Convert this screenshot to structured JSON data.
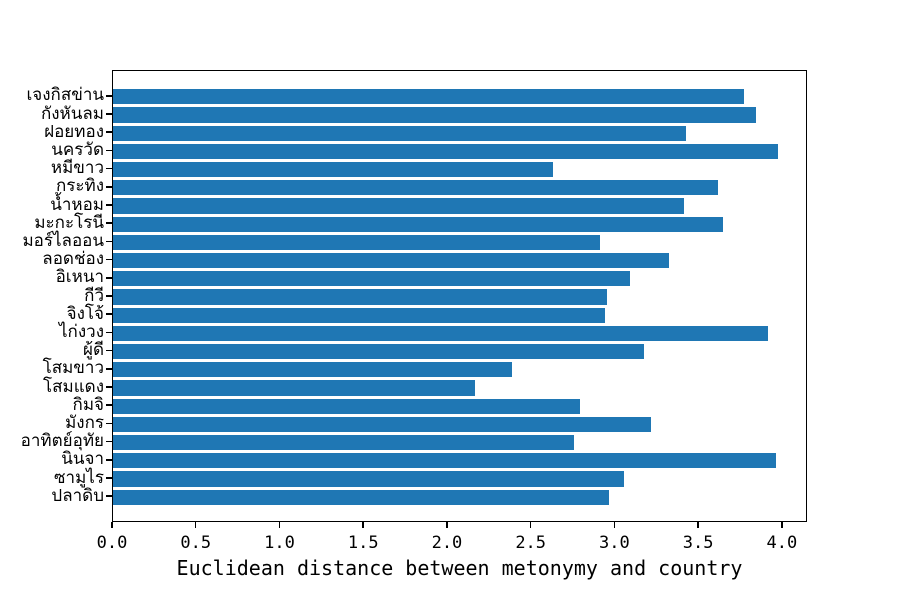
{
  "chart_data": {
    "type": "bar",
    "orientation": "horizontal",
    "title": "",
    "xlabel": "Euclidean distance between metonymy and country",
    "ylabel": "",
    "categories": [
      "เจงกิสข่าน",
      "กังหันลม",
      "ฝอยทอง",
      "นครวัด",
      "หมีขาว",
      "กระทิง",
      "น้ำหอม",
      "มะกะโรนี",
      "มอร์ไลออน",
      "ลอดช่อง",
      "อิเหนา",
      "กีวี",
      "จิงโจ้",
      "ไก่งวง",
      "ผู้ดี",
      "โสมขาว",
      "โสมแดง",
      "กิมจิ",
      "มังกร",
      "อาทิตย์อุทัย",
      "นินจา",
      "ซามูไร",
      "ปลาดิบ"
    ],
    "values": [
      3.77,
      3.84,
      3.42,
      3.97,
      2.63,
      3.61,
      3.41,
      3.64,
      2.91,
      3.32,
      3.09,
      2.95,
      2.94,
      3.91,
      3.17,
      2.38,
      2.16,
      2.79,
      3.21,
      2.75,
      3.96,
      3.05,
      2.96
    ],
    "xlim": [
      0.0,
      4.15
    ],
    "x_ticks": [
      0.0,
      0.5,
      1.0,
      1.5,
      2.0,
      2.5,
      3.0,
      3.5,
      4.0
    ],
    "x_tick_labels": [
      "0.0",
      "0.5",
      "1.0",
      "1.5",
      "2.0",
      "2.5",
      "3.0",
      "3.5",
      "4.0"
    ],
    "bar_color": "#1f77b4",
    "axis_color": "#000000",
    "grid": false,
    "legend": null
  }
}
